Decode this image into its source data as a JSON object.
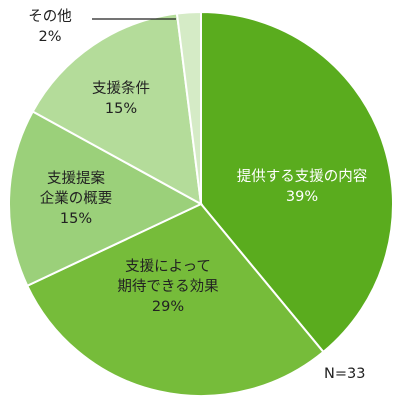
{
  "chart_data": {
    "type": "pie",
    "start_angle_deg": 0,
    "direction": "clockwise",
    "slices": [
      {
        "label": [
          "提供する支援の内容"
        ],
        "value": 39,
        "value_label": "39%",
        "color": "#5aac1e",
        "text_color": "#ffffff"
      },
      {
        "label": [
          "支援によって",
          "期待できる効果"
        ],
        "value": 29,
        "value_label": "29%",
        "color": "#76bc3a",
        "text_color": "#222222"
      },
      {
        "label": [
          "支援提案",
          "企業の概要"
        ],
        "value": 15,
        "value_label": "15%",
        "color": "#9bd07a",
        "text_color": "#222222"
      },
      {
        "label": [
          "支援条件"
        ],
        "value": 15,
        "value_label": "15%",
        "color": "#b4dc9a",
        "text_color": "#222222"
      },
      {
        "label": [
          "その他"
        ],
        "value": 2,
        "value_label": "2%",
        "color": "#d5ebc6",
        "text_color": "#222222",
        "label_outside": true
      }
    ],
    "annotation": "N=33"
  }
}
